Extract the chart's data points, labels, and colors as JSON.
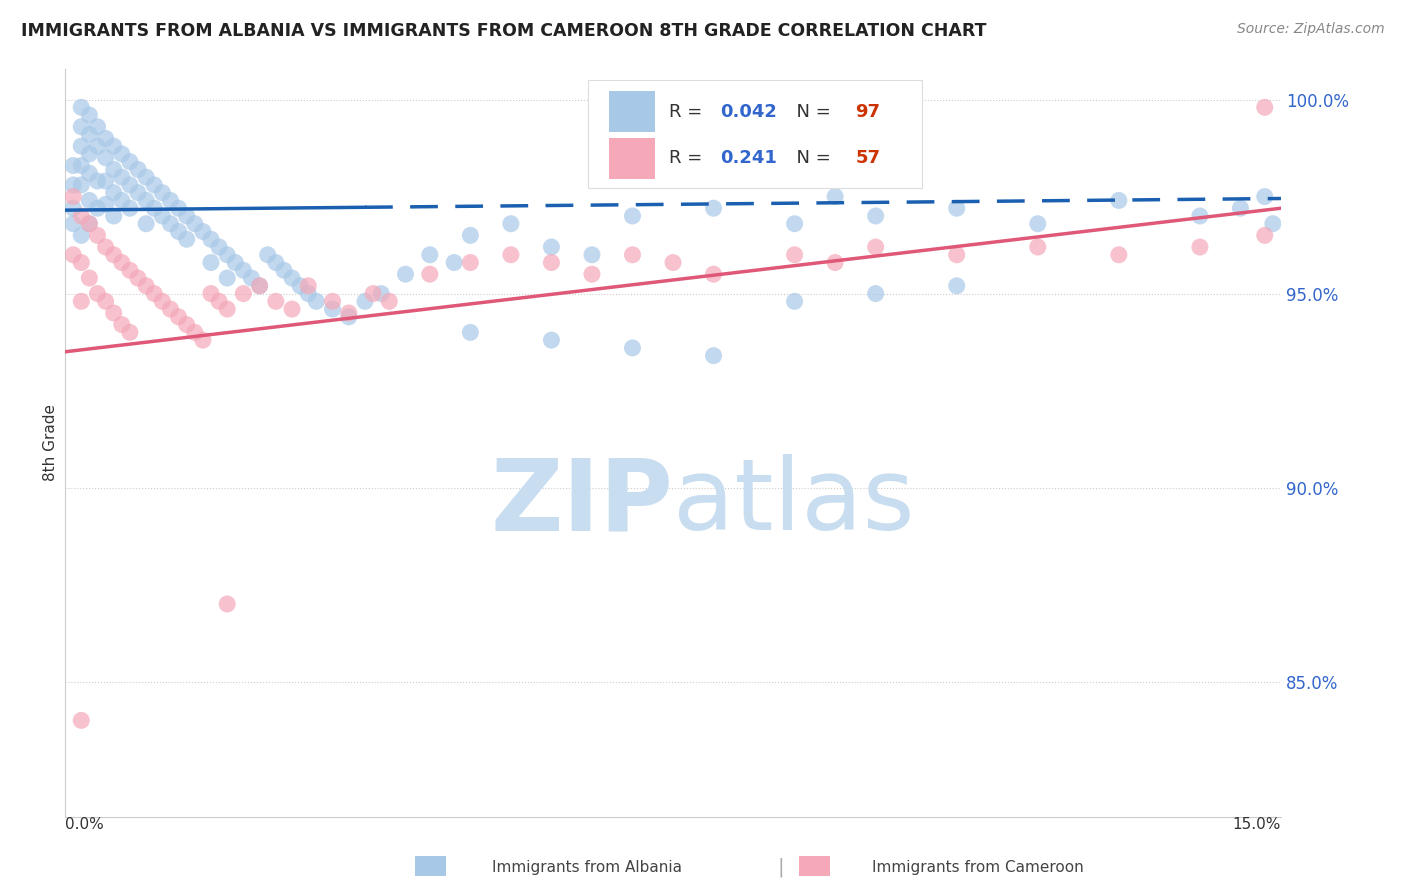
{
  "title": "IMMIGRANTS FROM ALBANIA VS IMMIGRANTS FROM CAMEROON 8TH GRADE CORRELATION CHART",
  "source": "Source: ZipAtlas.com",
  "ylabel": "8th Grade",
  "xmin": 0.0,
  "xmax": 0.15,
  "ymin": 0.815,
  "ymax": 1.008,
  "yticks": [
    0.85,
    0.9,
    0.95,
    1.0
  ],
  "ytick_labels": [
    "85.0%",
    "90.0%",
    "95.0%",
    "100.0%"
  ],
  "legend_r_albania": "0.042",
  "legend_n_albania": "97",
  "legend_r_cameroon": "0.241",
  "legend_n_cameroon": "57",
  "color_albania": "#a8c8e8",
  "color_cameroon": "#f4a8b8",
  "line_color_albania": "#1a5fb0",
  "line_color_cameroon": "#e05878",
  "watermark_zip_color": "#c8ddf0",
  "watermark_atlas_color": "#c8ddf0",
  "alb_x": [
    0.001,
    0.001,
    0.001,
    0.001,
    0.002,
    0.002,
    0.002,
    0.002,
    0.002,
    0.002,
    0.003,
    0.003,
    0.003,
    0.003,
    0.003,
    0.003,
    0.004,
    0.004,
    0.004,
    0.004,
    0.005,
    0.005,
    0.005,
    0.005,
    0.006,
    0.006,
    0.006,
    0.006,
    0.007,
    0.007,
    0.007,
    0.008,
    0.008,
    0.008,
    0.009,
    0.009,
    0.01,
    0.01,
    0.01,
    0.011,
    0.011,
    0.012,
    0.012,
    0.013,
    0.013,
    0.014,
    0.014,
    0.015,
    0.015,
    0.016,
    0.017,
    0.018,
    0.018,
    0.019,
    0.02,
    0.02,
    0.021,
    0.022,
    0.023,
    0.024,
    0.025,
    0.026,
    0.027,
    0.028,
    0.029,
    0.03,
    0.031,
    0.033,
    0.035,
    0.037,
    0.039,
    0.042,
    0.045,
    0.048,
    0.05,
    0.055,
    0.06,
    0.065,
    0.07,
    0.08,
    0.09,
    0.095,
    0.1,
    0.11,
    0.12,
    0.13,
    0.14,
    0.145,
    0.148,
    0.149,
    0.05,
    0.06,
    0.07,
    0.08,
    0.09,
    0.1,
    0.11
  ],
  "alb_y": [
    0.983,
    0.978,
    0.972,
    0.968,
    0.998,
    0.993,
    0.988,
    0.983,
    0.978,
    0.965,
    0.996,
    0.991,
    0.986,
    0.981,
    0.974,
    0.968,
    0.993,
    0.988,
    0.979,
    0.972,
    0.99,
    0.985,
    0.979,
    0.973,
    0.988,
    0.982,
    0.976,
    0.97,
    0.986,
    0.98,
    0.974,
    0.984,
    0.978,
    0.972,
    0.982,
    0.976,
    0.98,
    0.974,
    0.968,
    0.978,
    0.972,
    0.976,
    0.97,
    0.974,
    0.968,
    0.972,
    0.966,
    0.97,
    0.964,
    0.968,
    0.966,
    0.964,
    0.958,
    0.962,
    0.96,
    0.954,
    0.958,
    0.956,
    0.954,
    0.952,
    0.96,
    0.958,
    0.956,
    0.954,
    0.952,
    0.95,
    0.948,
    0.946,
    0.944,
    0.948,
    0.95,
    0.955,
    0.96,
    0.958,
    0.965,
    0.968,
    0.962,
    0.96,
    0.97,
    0.972,
    0.968,
    0.975,
    0.97,
    0.972,
    0.968,
    0.974,
    0.97,
    0.972,
    0.975,
    0.968,
    0.94,
    0.938,
    0.936,
    0.934,
    0.948,
    0.95,
    0.952
  ],
  "cam_x": [
    0.001,
    0.001,
    0.002,
    0.002,
    0.002,
    0.003,
    0.003,
    0.004,
    0.004,
    0.005,
    0.005,
    0.006,
    0.006,
    0.007,
    0.007,
    0.008,
    0.008,
    0.009,
    0.01,
    0.011,
    0.012,
    0.013,
    0.014,
    0.015,
    0.016,
    0.017,
    0.018,
    0.019,
    0.02,
    0.022,
    0.024,
    0.026,
    0.028,
    0.03,
    0.033,
    0.035,
    0.038,
    0.04,
    0.045,
    0.05,
    0.055,
    0.06,
    0.065,
    0.07,
    0.075,
    0.08,
    0.09,
    0.095,
    0.1,
    0.11,
    0.12,
    0.13,
    0.14,
    0.148,
    0.148,
    0.002,
    0.02
  ],
  "cam_y": [
    0.975,
    0.96,
    0.97,
    0.958,
    0.948,
    0.968,
    0.954,
    0.965,
    0.95,
    0.962,
    0.948,
    0.96,
    0.945,
    0.958,
    0.942,
    0.956,
    0.94,
    0.954,
    0.952,
    0.95,
    0.948,
    0.946,
    0.944,
    0.942,
    0.94,
    0.938,
    0.95,
    0.948,
    0.946,
    0.95,
    0.952,
    0.948,
    0.946,
    0.952,
    0.948,
    0.945,
    0.95,
    0.948,
    0.955,
    0.958,
    0.96,
    0.958,
    0.955,
    0.96,
    0.958,
    0.955,
    0.96,
    0.958,
    0.962,
    0.96,
    0.962,
    0.96,
    0.962,
    0.965,
    0.998,
    0.84,
    0.87
  ]
}
